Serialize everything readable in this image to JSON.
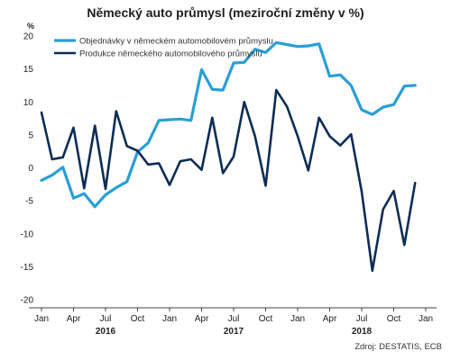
{
  "chart_data": {
    "type": "line",
    "title": "Německý auto průmysl (meziroční změny v %)",
    "ylabel": "%",
    "xlabel": "",
    "ylim": [
      -20,
      20
    ],
    "yticks": [
      20,
      15,
      10,
      5,
      0,
      -5,
      -10,
      -15,
      -20
    ],
    "x_months": [
      0,
      1,
      2,
      3,
      4,
      5,
      6,
      7,
      8,
      9,
      10,
      11,
      12,
      13,
      14,
      15,
      16,
      17,
      18,
      19,
      20,
      21,
      22,
      23,
      24,
      25,
      26,
      27,
      28,
      29,
      30,
      31,
      32,
      33,
      34,
      35
    ],
    "x_start": "2016-01",
    "month_ticks": [
      {
        "label": "Jan",
        "month": 0
      },
      {
        "label": "Apr",
        "month": 3
      },
      {
        "label": "Jul",
        "month": 6
      },
      {
        "label": "Oct",
        "month": 9
      },
      {
        "label": "Jan",
        "month": 12
      },
      {
        "label": "Apr",
        "month": 15
      },
      {
        "label": "Jul",
        "month": 18
      },
      {
        "label": "Oct",
        "month": 21
      },
      {
        "label": "Jan",
        "month": 24
      },
      {
        "label": "Apr",
        "month": 27
      },
      {
        "label": "Jul",
        "month": 30
      },
      {
        "label": "Oct",
        "month": 33
      },
      {
        "label": "Jan",
        "month": 36
      }
    ],
    "year_labels": [
      {
        "label": "2016",
        "month": 6
      },
      {
        "label": "2017",
        "month": 18
      },
      {
        "label": "2018",
        "month": 30
      }
    ],
    "grid": false,
    "legend_position": "top-left",
    "series": [
      {
        "name": "Objednávky v německém automobilovém průmyslu",
        "color": "#2a9fd6",
        "values": [
          -1.9,
          -1.1,
          0.1,
          -4.6,
          -3.9,
          -5.9,
          -4.1,
          -3.0,
          -2.1,
          2.4,
          3.8,
          7.2,
          7.3,
          7.4,
          7.2,
          14.9,
          11.9,
          11.8,
          15.9,
          16.0,
          18.0,
          17.5,
          19.0,
          18.7,
          18.4,
          18.5,
          18.8,
          13.9,
          14.1,
          12.5,
          8.8,
          8.1,
          9.2,
          9.6,
          12.4,
          12.5
        ]
      },
      {
        "name": "Produkce německého automobilového průmyslu",
        "color": "#0c2d55",
        "values": [
          8.4,
          1.3,
          1.6,
          6.1,
          -3.1,
          6.4,
          -3.2,
          8.6,
          3.3,
          2.6,
          0.5,
          0.7,
          -2.6,
          1.0,
          1.3,
          -0.3,
          7.6,
          -0.8,
          1.7,
          10.0,
          4.8,
          -2.7,
          11.8,
          9.3,
          4.8,
          -0.4,
          7.6,
          4.8,
          3.4,
          5.1,
          -3.6,
          -15.6,
          -6.3,
          -3.5,
          -11.7,
          -2.3
        ]
      }
    ],
    "source": "Zdroj: DESTATIS, ECB"
  }
}
